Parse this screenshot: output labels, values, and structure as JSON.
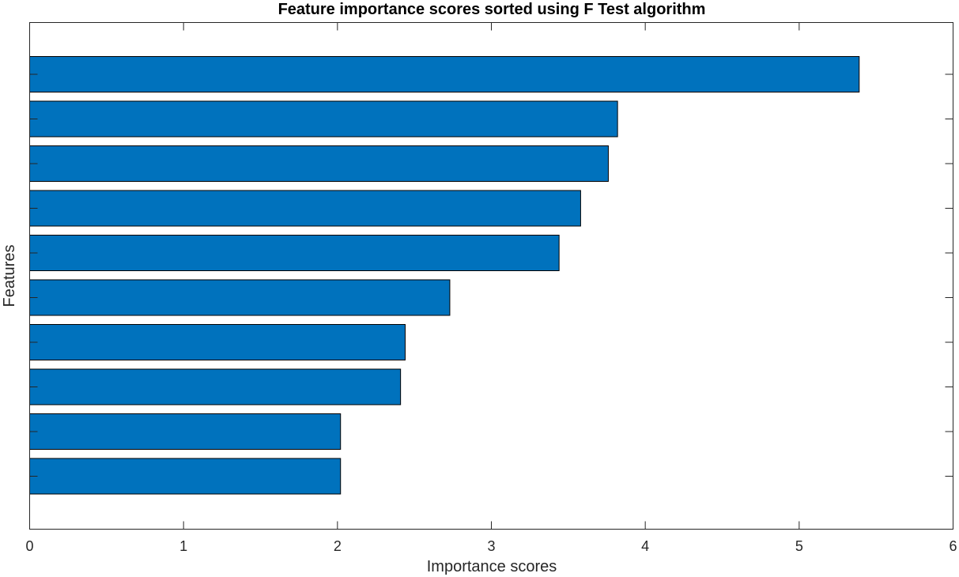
{
  "chart_data": {
    "type": "bar",
    "orientation": "horizontal",
    "title": "Feature importance scores sorted using F Test algorithm",
    "xlabel": "Importance scores",
    "ylabel": "Features",
    "xlim": [
      0,
      6
    ],
    "xticks": [
      "0",
      "1",
      "2",
      "3",
      "4",
      "5",
      "6"
    ],
    "categories": [
      "",
      "",
      "",
      "",
      "",
      "",
      "",
      "",
      "",
      ""
    ],
    "values": [
      5.39,
      3.82,
      3.76,
      3.58,
      3.44,
      2.73,
      2.44,
      2.41,
      2.02,
      2.02
    ],
    "bar_color": "#0072BD",
    "grid": false
  }
}
